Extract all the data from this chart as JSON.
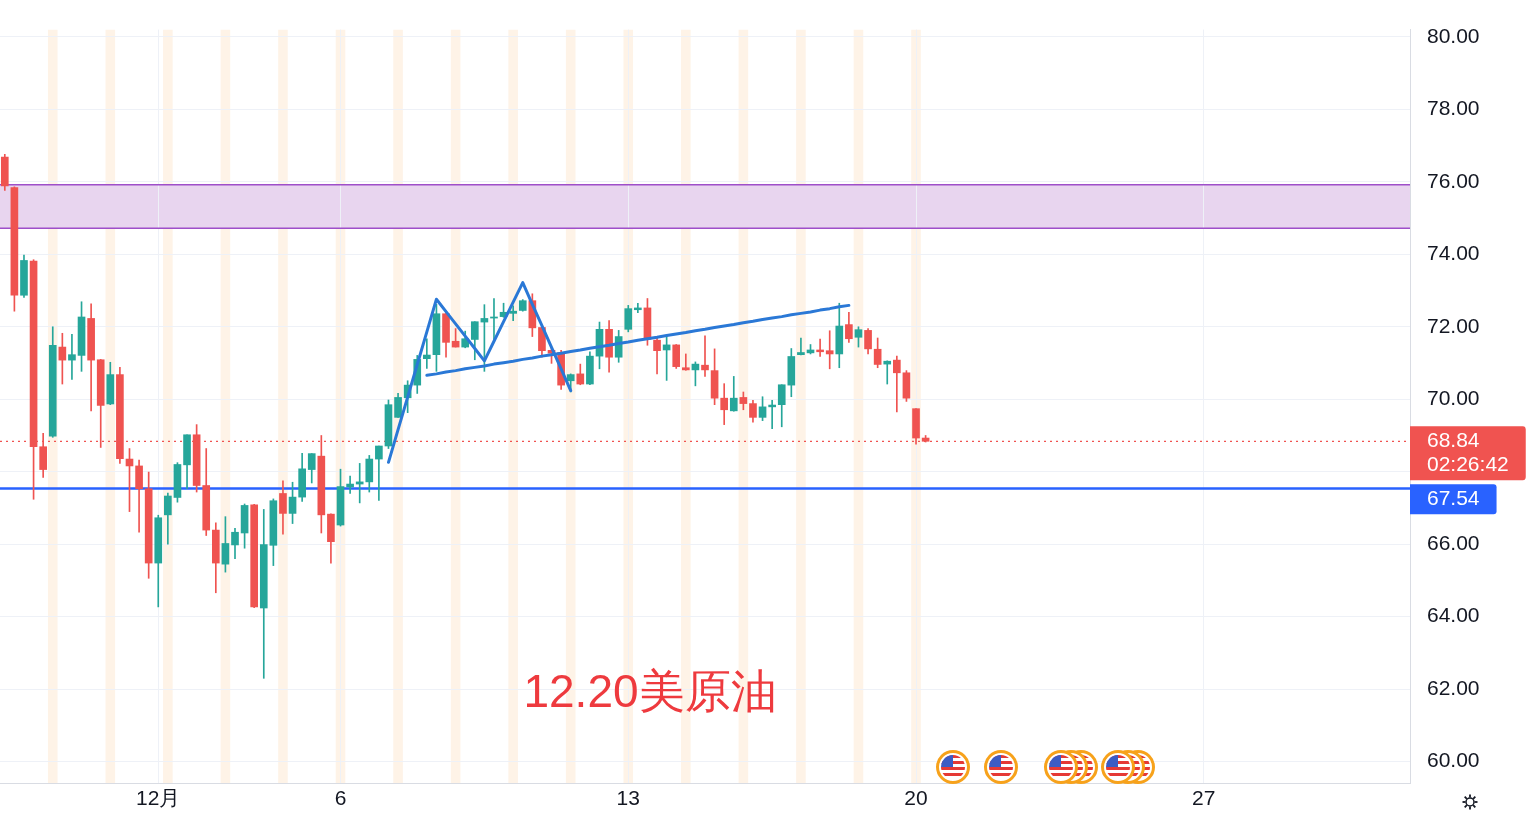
{
  "chart_data": {
    "type": "candlestick",
    "title": "12.20美原油",
    "categories": [
      null,
      null,
      null,
      null,
      null,
      null,
      null,
      null,
      null,
      null,
      null,
      null,
      null,
      null,
      null,
      null,
      "12月",
      null,
      null,
      null,
      null,
      null,
      null,
      null,
      null,
      null,
      null,
      null,
      null,
      null,
      null,
      null,
      null,
      null,
      null,
      "6",
      null,
      null,
      null,
      null,
      null,
      null,
      null,
      null,
      null,
      null,
      null,
      null,
      null,
      null,
      null,
      null,
      null,
      null,
      null,
      null,
      null,
      null,
      null,
      null,
      null,
      null,
      null,
      null,
      null,
      "13",
      null,
      null,
      null,
      null,
      null,
      null,
      null,
      null,
      null,
      null,
      null,
      null,
      null,
      null,
      null,
      null,
      null,
      null,
      null,
      null,
      null,
      null,
      null,
      null,
      null,
      null,
      null,
      null,
      null,
      "20",
      null,
      null,
      null,
      null,
      null,
      null,
      null,
      null,
      null,
      null,
      null,
      null,
      null,
      null,
      null,
      null,
      null,
      null,
      null,
      null,
      null,
      null,
      null,
      null,
      null,
      null,
      null,
      null,
      null,
      "27",
      null,
      null,
      null,
      null,
      null,
      null,
      null,
      null,
      null,
      null,
      null,
      null,
      null,
      null,
      null,
      null,
      null,
      null,
      null,
      null,
      null
    ],
    "ohlc": [
      [
        76.68,
        76.76,
        75.76,
        75.89
      ],
      [
        75.84,
        75.86,
        72.43,
        72.87
      ],
      [
        72.87,
        73.98,
        72.81,
        73.83
      ],
      [
        73.81,
        73.85,
        67.24,
        68.69
      ],
      [
        68.69,
        69.06,
        67.84,
        68.06
      ],
      [
        68.98,
        72.0,
        68.95,
        71.49
      ],
      [
        71.44,
        71.82,
        70.42,
        71.08
      ],
      [
        71.08,
        71.79,
        70.55,
        71.23
      ],
      [
        71.21,
        72.69,
        70.77,
        72.27
      ],
      [
        72.23,
        72.63,
        69.68,
        71.08
      ],
      [
        71.09,
        71.1,
        68.67,
        69.83
      ],
      [
        69.87,
        71.02,
        69.85,
        70.68
      ],
      [
        70.68,
        70.88,
        68.23,
        68.36
      ],
      [
        68.35,
        68.64,
        66.9,
        68.16
      ],
      [
        68.16,
        68.32,
        66.33,
        67.53
      ],
      [
        67.53,
        67.99,
        65.06,
        65.48
      ],
      [
        65.48,
        66.8,
        64.27,
        66.73
      ],
      [
        66.81,
        67.41,
        66.0,
        67.33
      ],
      [
        67.29,
        68.25,
        67.16,
        68.2
      ],
      [
        68.19,
        69.02,
        67.53,
        69.02
      ],
      [
        69.02,
        69.3,
        67.44,
        67.62
      ],
      [
        67.62,
        68.64,
        66.24,
        66.39
      ],
      [
        66.39,
        66.59,
        64.66,
        65.48
      ],
      [
        65.45,
        66.76,
        65.23,
        66.02
      ],
      [
        65.98,
        66.44,
        65.6,
        66.33
      ],
      [
        66.31,
        67.11,
        65.89,
        67.07
      ],
      [
        67.09,
        67.1,
        64.25,
        64.27
      ],
      [
        64.24,
        66.96,
        62.3,
        65.99
      ],
      [
        65.97,
        67.25,
        65.41,
        67.2
      ],
      [
        67.4,
        67.75,
        66.28,
        66.85
      ],
      [
        66.85,
        67.71,
        66.57,
        67.3
      ],
      [
        67.3,
        68.51,
        67.18,
        68.08
      ],
      [
        68.06,
        68.5,
        67.69,
        68.5
      ],
      [
        68.43,
        69.0,
        66.31,
        66.81
      ],
      [
        66.83,
        66.84,
        65.48,
        66.07
      ],
      [
        66.53,
        68.07,
        66.5,
        67.59
      ],
      [
        67.58,
        67.88,
        67.4,
        67.66
      ],
      [
        67.66,
        68.23,
        67.14,
        67.72
      ],
      [
        67.72,
        68.45,
        67.44,
        68.35
      ],
      [
        68.35,
        68.71,
        67.21,
        68.71
      ],
      [
        68.71,
        69.98,
        68.64,
        69.85
      ],
      [
        69.5,
        70.16,
        69.5,
        70.05
      ],
      [
        70.04,
        70.51,
        69.63,
        70.39
      ],
      [
        70.39,
        71.21,
        70.16,
        71.1
      ],
      [
        71.12,
        71.67,
        70.85,
        71.22
      ],
      [
        71.23,
        72.62,
        70.77,
        72.36
      ],
      [
        72.36,
        72.43,
        71.16,
        71.57
      ],
      [
        71.6,
        71.95,
        71.44,
        71.44
      ],
      [
        71.44,
        71.88,
        71.42,
        71.67
      ],
      [
        71.65,
        72.14,
        71.09,
        72.14
      ],
      [
        72.13,
        72.61,
        70.77,
        72.23
      ],
      [
        72.24,
        72.78,
        71.65,
        72.27
      ],
      [
        72.28,
        72.65,
        72.26,
        72.4
      ],
      [
        72.37,
        72.58,
        72.17,
        72.43
      ],
      [
        72.45,
        72.75,
        72.43,
        72.72
      ],
      [
        72.72,
        72.91,
        71.73,
        71.97
      ],
      [
        71.98,
        71.99,
        71.16,
        71.34
      ],
      [
        71.35,
        71.42,
        70.99,
        71.27
      ],
      [
        71.29,
        71.35,
        70.27,
        70.39
      ],
      [
        70.51,
        70.7,
        70.2,
        70.68
      ],
      [
        70.7,
        70.97,
        70.4,
        70.42
      ],
      [
        70.42,
        71.31,
        70.4,
        71.19
      ],
      [
        71.19,
        72.13,
        70.84,
        71.93
      ],
      [
        71.93,
        72.17,
        70.75,
        71.16
      ],
      [
        71.16,
        71.9,
        71.02,
        71.73
      ],
      [
        71.93,
        72.59,
        71.86,
        72.5
      ],
      [
        72.47,
        72.65,
        72.39,
        72.52
      ],
      [
        72.52,
        72.78,
        71.49,
        71.65
      ],
      [
        71.63,
        71.73,
        70.7,
        71.34
      ],
      [
        71.36,
        71.77,
        70.52,
        71.5
      ],
      [
        71.5,
        71.51,
        70.85,
        70.9
      ],
      [
        70.87,
        71.25,
        70.8,
        70.81
      ],
      [
        70.81,
        71.03,
        70.37,
        70.97
      ],
      [
        70.94,
        71.75,
        70.63,
        70.81
      ],
      [
        70.79,
        71.39,
        69.85,
        70.03
      ],
      [
        70.03,
        70.43,
        69.3,
        69.71
      ],
      [
        69.68,
        70.63,
        69.67,
        70.03
      ],
      [
        70.05,
        70.2,
        69.71,
        69.88
      ],
      [
        69.88,
        69.97,
        69.37,
        69.5
      ],
      [
        69.5,
        70.07,
        69.41,
        69.79
      ],
      [
        69.79,
        69.97,
        69.19,
        69.84
      ],
      [
        69.85,
        70.4,
        69.24,
        70.4
      ],
      [
        70.39,
        71.4,
        70.07,
        71.18
      ],
      [
        71.23,
        71.69,
        71.22,
        71.29
      ],
      [
        71.28,
        71.51,
        71.25,
        71.36
      ],
      [
        71.36,
        71.66,
        71.18,
        71.31
      ],
      [
        71.34,
        71.89,
        70.84,
        71.25
      ],
      [
        71.25,
        72.65,
        70.87,
        72.02
      ],
      [
        72.06,
        72.4,
        71.57,
        71.67
      ],
      [
        71.71,
        72.0,
        71.44,
        71.92
      ],
      [
        71.9,
        71.95,
        71.25,
        71.39
      ],
      [
        71.38,
        71.69,
        70.87,
        70.96
      ],
      [
        70.97,
        71.06,
        70.42,
        71.05
      ],
      [
        71.08,
        71.19,
        69.65,
        70.73
      ],
      [
        70.73,
        70.79,
        69.94,
        70.03
      ],
      [
        69.74,
        69.74,
        68.76,
        68.93
      ],
      [
        68.93,
        69.0,
        68.82,
        68.84
      ],
      null,
      null,
      null,
      null,
      null,
      null,
      null,
      null,
      null,
      null,
      null,
      null,
      null,
      null,
      null,
      null,
      null,
      null,
      null,
      null,
      null,
      null,
      null,
      null,
      null,
      null,
      null,
      null,
      null,
      null,
      null,
      null,
      null,
      null,
      null,
      null,
      null,
      null,
      null,
      null,
      null,
      null,
      null,
      null,
      null,
      null,
      null,
      null,
      null,
      null
    ],
    "colors": [
      "#ef5350",
      "#ef5350",
      "#26a69a",
      "#ef5350",
      "#ef5350",
      "#26a69a",
      "#ef5350",
      "#26a69a",
      "#26a69a",
      "#ef5350",
      "#ef5350",
      "#26a69a",
      "#ef5350",
      "#ef5350",
      "#ef5350",
      "#ef5350",
      "#26a69a",
      "#26a69a",
      "#26a69a",
      "#26a69a",
      "#ef5350",
      "#ef5350",
      "#ef5350",
      "#26a69a",
      "#26a69a",
      "#26a69a",
      "#ef5350",
      "#26a69a",
      "#26a69a",
      "#ef5350",
      "#26a69a",
      "#26a69a",
      "#26a69a",
      "#ef5350",
      "#ef5350",
      "#26a69a",
      "#26a69a",
      "#26a69a",
      "#26a69a",
      "#26a69a",
      "#26a69a",
      "#26a69a",
      "#26a69a",
      "#26a69a",
      "#26a69a",
      "#26a69a",
      "#ef5350",
      "#ef5350",
      "#26a69a",
      "#26a69a",
      "#26a69a",
      "#26a69a",
      "#26a69a",
      "#26a69a",
      "#26a69a",
      "#ef5350",
      "#ef5350",
      "#ef5350",
      "#ef5350",
      "#26a69a",
      "#ef5350",
      "#26a69a",
      "#26a69a",
      "#ef5350",
      "#26a69a",
      "#26a69a",
      "#26a69a",
      "#ef5350",
      "#ef5350",
      "#26a69a",
      "#ef5350",
      "#ef5350",
      "#26a69a",
      "#ef5350",
      "#ef5350",
      "#ef5350",
      "#26a69a",
      "#ef5350",
      "#ef5350",
      "#26a69a",
      "#26a69a",
      "#26a69a",
      "#26a69a",
      "#26a69a",
      "#26a69a",
      "#ef5350",
      "#ef5350",
      "#26a69a",
      "#ef5350",
      "#26a69a",
      "#ef5350",
      "#ef5350",
      "#26a69a",
      "#ef5350",
      "#ef5350",
      "#ef5350",
      "#ef5350",
      null,
      null,
      null,
      null,
      null,
      null,
      null,
      null,
      null,
      null,
      null,
      null,
      null,
      null,
      null,
      null,
      null,
      null,
      null,
      null,
      null,
      null,
      null,
      null,
      null,
      null,
      null,
      null,
      null,
      null,
      null,
      null,
      null,
      null,
      null,
      null,
      null,
      null,
      null,
      null,
      null,
      null,
      null,
      null,
      null,
      null,
      null,
      null,
      null,
      null
    ],
    "series": [
      {
        "type": "line",
        "color": "#2a78d6",
        "values": [
          null,
          null,
          null,
          null,
          null,
          null,
          null,
          null,
          null,
          null,
          null,
          null,
          null,
          null,
          null,
          null,
          null,
          null,
          null,
          null,
          null,
          null,
          null,
          null,
          null,
          null,
          null,
          null,
          null,
          null,
          null,
          null,
          null,
          null,
          null,
          null,
          null,
          null,
          null,
          null,
          68.26,
          69.16,
          70.06,
          70.96,
          71.86,
          72.76,
          72.42,
          72.08,
          71.74,
          71.4,
          71.06,
          71.6,
          72.14,
          72.68,
          73.22,
          72.62,
          72.03,
          71.43,
          70.84,
          70.24,
          null,
          null,
          null,
          null,
          null,
          null,
          null,
          null,
          null,
          null,
          null,
          null,
          null,
          null,
          null,
          null,
          null,
          null,
          null,
          null,
          null,
          null,
          null,
          null,
          null,
          null,
          null,
          null,
          null,
          null,
          null,
          null,
          null,
          null,
          null,
          null,
          null,
          null,
          null,
          null,
          null,
          null,
          null,
          null,
          null,
          null,
          null,
          null,
          null,
          null,
          null,
          null,
          null,
          null,
          null,
          null,
          null,
          null,
          null,
          null,
          null,
          null,
          null,
          null,
          null,
          null,
          null,
          null,
          null,
          null,
          null,
          null,
          null,
          null,
          null,
          null,
          null,
          null,
          null,
          null,
          null,
          null,
          null,
          null,
          null,
          null,
          null
        ]
      },
      {
        "type": "line",
        "color": "#2a78d6",
        "values": [
          null,
          null,
          null,
          null,
          null,
          null,
          null,
          null,
          null,
          null,
          null,
          null,
          null,
          null,
          null,
          null,
          null,
          null,
          null,
          null,
          null,
          null,
          null,
          null,
          null,
          null,
          null,
          null,
          null,
          null,
          null,
          null,
          null,
          null,
          null,
          null,
          null,
          null,
          null,
          null,
          null,
          null,
          null,
          null,
          70.66,
          70.7,
          70.75,
          70.79,
          70.84,
          70.88,
          70.92,
          70.97,
          71.01,
          71.05,
          71.1,
          71.14,
          71.19,
          71.23,
          71.27,
          71.32,
          71.36,
          71.41,
          71.45,
          71.49,
          71.54,
          71.58,
          71.63,
          71.67,
          71.71,
          71.76,
          71.8,
          71.84,
          71.89,
          71.93,
          71.98,
          72.02,
          72.06,
          72.11,
          72.15,
          72.2,
          72.24,
          72.28,
          72.33,
          72.37,
          72.41,
          72.46,
          72.5,
          72.55,
          72.59,
          null,
          null,
          null,
          null,
          null,
          null,
          null,
          null,
          null,
          null,
          null,
          null,
          null,
          null,
          null,
          null,
          null,
          null,
          null,
          null,
          null,
          null,
          null,
          null,
          null,
          null,
          null,
          null,
          null,
          null,
          null,
          null,
          null,
          null,
          null,
          null,
          null,
          null,
          null,
          null,
          null,
          null,
          null,
          null,
          null,
          null,
          null,
          null,
          null,
          null,
          null,
          null,
          null,
          null,
          null,
          null,
          null,
          null
        ]
      }
    ],
    "ylim": [
      59.4,
      80.2
    ],
    "yticks": [
      {
        "value": 60,
        "label": "60.00"
      },
      {
        "value": 62,
        "label": "62.00"
      },
      {
        "value": 64,
        "label": "64.00"
      },
      {
        "value": 66,
        "label": "66.00"
      },
      {
        "value": 68,
        "label": null
      },
      {
        "value": 70,
        "label": "70.00"
      },
      {
        "value": 72,
        "label": "72.00"
      },
      {
        "value": 74,
        "label": "74.00"
      },
      {
        "value": 76,
        "label": "76.00"
      },
      {
        "value": 78,
        "label": "78.00"
      },
      {
        "value": 80,
        "label": "80.00"
      }
    ],
    "grid": true,
    "bands": [
      {
        "axis": "y",
        "from": 74.72,
        "to": 75.92,
        "color": "#e8d5ef"
      }
    ],
    "ref_lines": [
      {
        "axis": "y",
        "value": 75.92,
        "color": "#9e4fc9"
      },
      {
        "axis": "y",
        "value": 74.72,
        "color": "#9e4fc9"
      },
      {
        "axis": "y",
        "value": 68.84,
        "label": "68.84\n02:26:42",
        "color": "#f05350",
        "line_style": "dotted"
      },
      {
        "axis": "y",
        "value": 67.54,
        "label": "67.54",
        "color": "#2962ff"
      }
    ]
  }
}
